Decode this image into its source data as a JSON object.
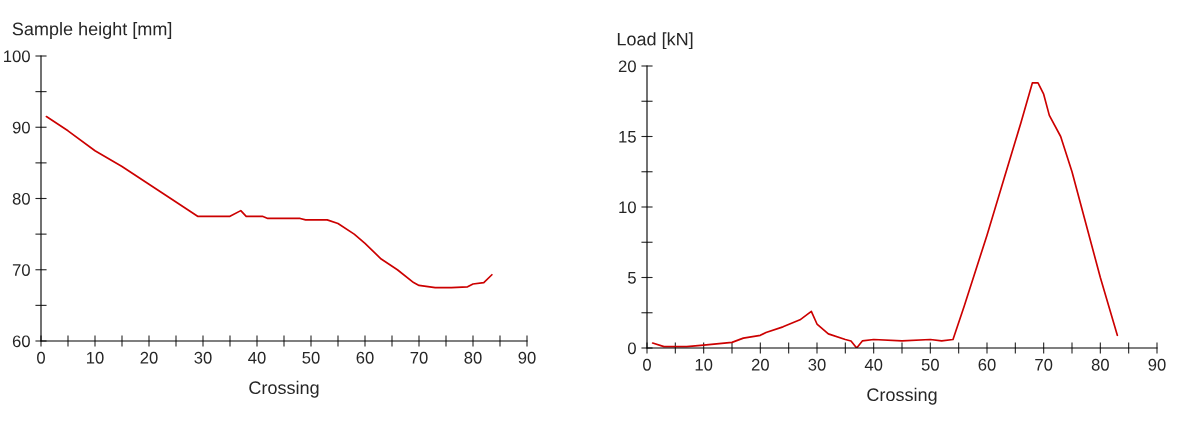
{
  "chart_data": [
    {
      "type": "line",
      "ylabel": "Sample height [mm]",
      "xlabel": "Crossing",
      "xlim": [
        0,
        90
      ],
      "ylim": [
        60,
        100
      ],
      "xticks": [
        0,
        {
          "value": 5,
          "label": null
        },
        10,
        {
          "value": 15,
          "label": null
        },
        20,
        {
          "value": 25,
          "label": null
        },
        30,
        {
          "value": 35,
          "label": null
        },
        40,
        {
          "value": 45,
          "label": null
        },
        50,
        {
          "value": 55,
          "label": null
        },
        60,
        {
          "value": 65,
          "label": null
        },
        70,
        {
          "value": 75,
          "label": null
        },
        80,
        {
          "value": 85,
          "label": null
        },
        90
      ],
      "yticks": [
        60,
        {
          "value": 65,
          "label": null
        },
        70,
        {
          "value": 75,
          "label": null
        },
        80,
        {
          "value": 85,
          "label": null
        },
        90,
        {
          "value": 95,
          "label": null
        },
        100
      ],
      "grid": false,
      "legend": false,
      "series": [
        {
          "color": "#cc0000",
          "x": [
            1,
            5,
            10,
            15,
            20,
            25,
            29,
            35,
            37,
            38,
            41,
            42,
            48,
            49,
            53,
            55,
            58,
            60,
            63,
            66,
            69,
            70,
            73,
            76,
            79,
            80,
            82,
            83.5
          ],
          "values": [
            91.5,
            89.5,
            86.7,
            84.5,
            82,
            79.5,
            77.5,
            77.5,
            78.3,
            77.5,
            77.5,
            77.2,
            77.2,
            77,
            77,
            76.5,
            75,
            73.7,
            71.5,
            70,
            68.2,
            67.8,
            67.5,
            67.5,
            67.6,
            68,
            68.2,
            69.3
          ]
        }
      ]
    },
    {
      "type": "line",
      "ylabel": "Load [kN]",
      "xlabel": "Crossing",
      "xlim": [
        0,
        90
      ],
      "ylim": [
        0,
        20
      ],
      "xticks": [
        0,
        {
          "value": 5,
          "label": null
        },
        10,
        {
          "value": 15,
          "label": null
        },
        20,
        {
          "value": 25,
          "label": null
        },
        30,
        {
          "value": 35,
          "label": null
        },
        40,
        {
          "value": 45,
          "label": null
        },
        50,
        {
          "value": 55,
          "label": null
        },
        60,
        {
          "value": 65,
          "label": null
        },
        70,
        {
          "value": 75,
          "label": null
        },
        80,
        {
          "value": 85,
          "label": null
        },
        90
      ],
      "yticks": [
        0,
        {
          "value": 2.5,
          "label": null
        },
        5,
        {
          "value": 7.5,
          "label": null
        },
        10,
        {
          "value": 12.5,
          "label": null
        },
        15,
        {
          "value": 17.5,
          "label": null
        },
        20
      ],
      "grid": false,
      "legend": false,
      "series": [
        {
          "color": "#cc0000",
          "x": [
            1,
            3,
            7,
            10,
            15,
            17,
            20,
            21,
            24,
            27,
            29,
            30,
            32,
            35,
            36,
            37,
            38,
            40,
            45,
            50,
            52,
            54,
            56,
            60,
            63,
            66,
            68,
            69,
            70,
            71,
            73,
            75,
            78,
            80,
            83
          ],
          "values": [
            0.35,
            0.1,
            0.1,
            0.2,
            0.4,
            0.7,
            0.9,
            1.1,
            1.5,
            2.0,
            2.6,
            1.7,
            1.0,
            0.6,
            0.5,
            0,
            0.5,
            0.6,
            0.5,
            0.6,
            0.5,
            0.6,
            3,
            8,
            12,
            16,
            18.8,
            18.8,
            18,
            16.5,
            15,
            12.5,
            8,
            5,
            0.9
          ]
        }
      ]
    }
  ]
}
